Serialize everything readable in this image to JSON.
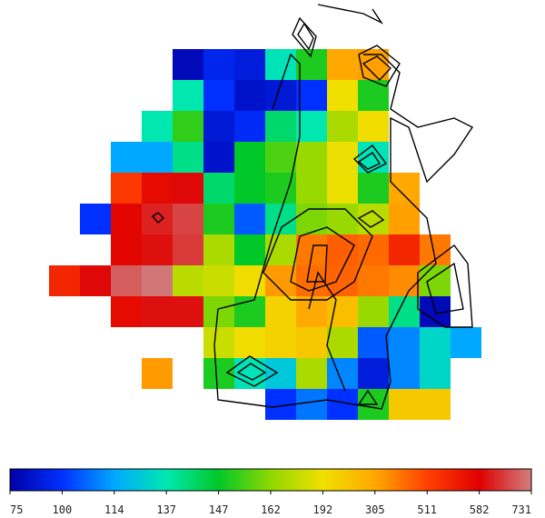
{
  "chart_data": {
    "type": "heatmap",
    "values": [
      [
        null,
        null,
        null,
        null,
        80,
        95,
        90,
        135,
        150,
        305,
        320,
        null,
        null,
        null
      ],
      [
        null,
        null,
        null,
        null,
        137,
        100,
        85,
        88,
        100,
        192,
        150,
        null,
        null,
        null
      ],
      [
        null,
        null,
        null,
        137,
        152,
        88,
        97,
        142,
        137,
        170,
        200,
        null,
        null,
        null
      ],
      [
        null,
        null,
        114,
        114,
        140,
        85,
        147,
        155,
        165,
        190,
        135,
        null,
        null,
        null
      ],
      [
        null,
        null,
        520,
        570,
        590,
        142,
        147,
        150,
        165,
        190,
        150,
        305,
        null,
        null
      ],
      [
        null,
        100,
        575,
        620,
        660,
        150,
        105,
        140,
        160,
        165,
        175,
        320,
        null,
        null
      ],
      [
        null,
        null,
        575,
        600,
        650,
        170,
        147,
        170,
        400,
        450,
        430,
        540,
        400,
        null
      ],
      [
        540,
        590,
        690,
        720,
        175,
        180,
        200,
        330,
        420,
        440,
        400,
        360,
        160,
        null
      ],
      [
        null,
        null,
        570,
        600,
        600,
        160,
        150,
        220,
        300,
        260,
        165,
        140,
        80,
        null
      ],
      [
        null,
        null,
        null,
        null,
        null,
        180,
        200,
        220,
        240,
        170,
        105,
        110,
        130,
        114
      ],
      [
        null,
        null,
        null,
        330,
        null,
        150,
        135,
        125,
        170,
        110,
        90,
        110,
        130,
        null
      ],
      [
        null,
        null,
        null,
        null,
        null,
        null,
        null,
        100,
        108,
        100,
        150,
        240,
        240,
        null
      ]
    ],
    "colorbar_ticks": [
      75,
      100,
      114,
      137,
      147,
      162,
      192,
      305,
      511,
      582,
      731
    ],
    "colors": [
      "#0000a8",
      "#0030ff",
      "#00a8ff",
      "#00e8b0",
      "#00c828",
      "#90d800",
      "#f0e000",
      "#ffa800",
      "#ff4000",
      "#e00000",
      "#d08080"
    ]
  }
}
